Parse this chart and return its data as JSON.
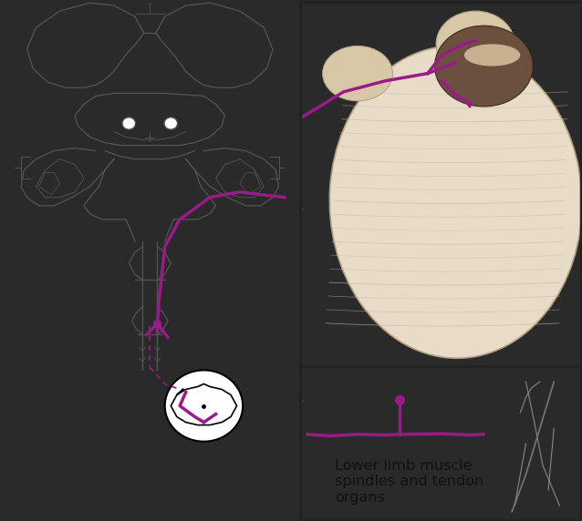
{
  "bg_color": "#2a2a2a",
  "left_panel_bg": "#ffffff",
  "right_top_bg": "#2a2a2a",
  "right_bot_bg": "#ffffff",
  "purple": "#9b1a8a",
  "text_color": "#111111",
  "label_text": "Lower limb muscle\nspindles and tendon\norgans",
  "label_fontsize": 11.5,
  "fig_width": 6.38,
  "fig_height": 5.72,
  "cerebellum_main": "#e8dcc8",
  "cerebellum_edge": "#b0a080",
  "cerebellum_dark": "#6b5040",
  "cerebellum_light_patch": "#d0bfa0",
  "cerebellum_stripe": "#c8b898"
}
